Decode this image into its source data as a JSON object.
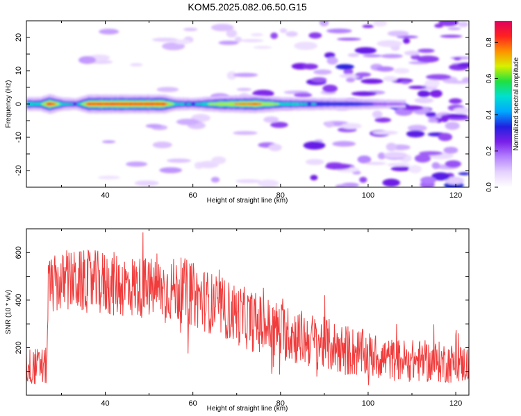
{
  "title": "KOM5.2025.082.06.50.G15",
  "colors": {
    "snr_line": "#f03c3c",
    "spectrum_colormap": [
      "#ffffff",
      "#e6d2ff",
      "#b482ff",
      "#7a1fe8",
      "#2020e0",
      "#00a8ff",
      "#00e0d0",
      "#20e040",
      "#d8f000",
      "#ff9000",
      "#ff2020",
      "#e00060"
    ]
  },
  "chart_data": [
    {
      "type": "heatmap",
      "title": "KOM5.2025.082.06.50.G15",
      "xlabel": "Height of straight line (km)",
      "ylabel": "Frequency (Hz)",
      "xlim": [
        22,
        123
      ],
      "ylim": [
        -25,
        25
      ],
      "xticks": [
        "40",
        "60",
        "80",
        "100",
        "120"
      ],
      "yticks": [
        "20",
        "10",
        "0",
        "-10",
        "-20"
      ],
      "colorbar": {
        "label": "Normalized spectral amplitude",
        "range": [
          0,
          0.92
        ],
        "ticks": [
          "0.0",
          "0.2",
          "0.4",
          "0.6",
          "0.8"
        ]
      },
      "ridge": {
        "frequency_hz": 0,
        "x_range_km": [
          22,
          108
        ],
        "peak_amplitude": [
          {
            "x": 25,
            "a": 0.55
          },
          {
            "x": 27,
            "a": 0.9
          },
          {
            "x": 30,
            "a": 0.5
          },
          {
            "x": 33,
            "a": 0.4
          },
          {
            "x": 36,
            "a": 0.85
          },
          {
            "x": 45,
            "a": 0.85
          },
          {
            "x": 53,
            "a": 0.85
          },
          {
            "x": 56,
            "a": 0.5
          },
          {
            "x": 60,
            "a": 0.45
          },
          {
            "x": 66,
            "a": 0.7
          },
          {
            "x": 74,
            "a": 0.8
          },
          {
            "x": 80,
            "a": 0.55
          },
          {
            "x": 88,
            "a": 0.45
          },
          {
            "x": 96,
            "a": 0.4
          },
          {
            "x": 101,
            "a": 0.3
          },
          {
            "x": 107,
            "a": 0.2
          }
        ]
      },
      "noise": "weak scattered blobs increasing beyond ~75 km"
    },
    {
      "type": "line",
      "xlabel": "Height of straight line (km)",
      "ylabel": "SNR (10 * v/v)",
      "xlim": [
        22,
        123
      ],
      "ylim": [
        0,
        700
      ],
      "xticks": [
        "40",
        "60",
        "80",
        "100",
        "120"
      ],
      "yticks": [
        "200",
        "400",
        "600"
      ],
      "series": [
        {
          "x_range_km": [
            22,
            123
          ],
          "trend": [
            {
              "x": 22,
              "mean": 120,
              "spread": 80
            },
            {
              "x": 26.6,
              "mean": 120,
              "spread": 80
            },
            {
              "x": 27,
              "mean": 460,
              "spread": 120
            },
            {
              "x": 32,
              "mean": 480,
              "spread": 130
            },
            {
              "x": 40,
              "mean": 470,
              "spread": 140
            },
            {
              "x": 50,
              "mean": 450,
              "spread": 130
            },
            {
              "x": 58,
              "mean": 440,
              "spread": 140
            },
            {
              "x": 65,
              "mean": 380,
              "spread": 130
            },
            {
              "x": 75,
              "mean": 300,
              "spread": 130
            },
            {
              "x": 85,
              "mean": 240,
              "spread": 120
            },
            {
              "x": 95,
              "mean": 190,
              "spread": 110
            },
            {
              "x": 105,
              "mean": 150,
              "spread": 90
            },
            {
              "x": 115,
              "mean": 140,
              "spread": 90
            },
            {
              "x": 123,
              "mean": 130,
              "spread": 80
            }
          ]
        }
      ]
    }
  ]
}
